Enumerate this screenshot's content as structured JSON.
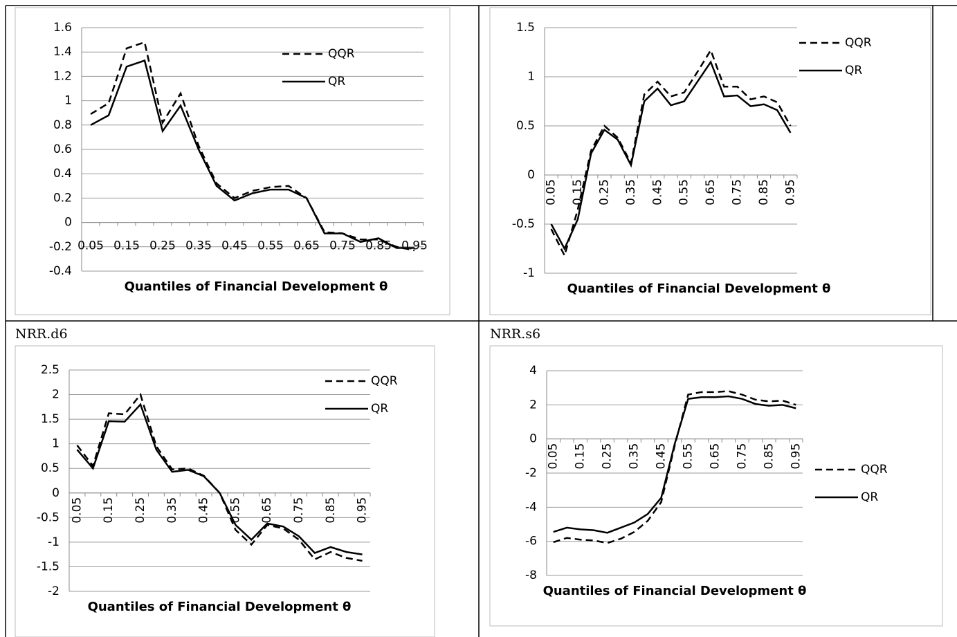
{
  "chart_data": [
    {
      "type": "line",
      "xlabel": "Quantiles of Financial Development θ",
      "categories": [
        "0.05",
        null,
        "0.15",
        null,
        "0.25",
        null,
        "0.35",
        null,
        "0.45",
        null,
        "0.55",
        null,
        "0.65",
        null,
        "0.75",
        null,
        "0.85",
        null,
        "0.95"
      ],
      "series": [
        {
          "name": "QQR",
          "color": "#000000",
          "values": [
            0.89,
            0.98,
            1.43,
            1.48,
            0.82,
            1.06,
            0.63,
            0.32,
            0.2,
            0.26,
            0.29,
            0.3,
            0.2,
            -0.08,
            -0.09,
            -0.14,
            -0.14,
            -0.2,
            -0.23
          ]
        },
        {
          "name": "QR",
          "color": "#000000",
          "values": [
            0.8,
            0.88,
            1.28,
            1.33,
            0.75,
            0.96,
            0.6,
            0.3,
            0.18,
            0.24,
            0.27,
            0.27,
            0.2,
            -0.09,
            -0.09,
            -0.16,
            -0.13,
            -0.21,
            -0.21
          ]
        }
      ],
      "ylim": [
        -0.4,
        1.6
      ],
      "yticks": [
        -0.4,
        -0.2,
        0,
        0.2,
        0.4,
        0.6,
        0.8,
        1,
        1.2,
        1.4,
        1.6
      ],
      "grid": true
    },
    {
      "type": "line",
      "xlabel": "Quantiles of Financial Development θ",
      "categories": [
        "0.05",
        null,
        "0.15",
        null,
        "0.25",
        null,
        "0.35",
        null,
        "0.45",
        null,
        "0.55",
        null,
        "0.65",
        null,
        "0.75",
        null,
        "0.85",
        null,
        "0.95"
      ],
      "series": [
        {
          "name": "QQR",
          "color": "#000000",
          "values": [
            -0.55,
            -0.82,
            -0.35,
            0.25,
            0.5,
            0.38,
            0.12,
            0.82,
            0.95,
            0.8,
            0.84,
            1.05,
            1.27,
            0.9,
            0.9,
            0.77,
            0.8,
            0.74,
            0.5
          ]
        },
        {
          "name": "QR",
          "color": "#000000",
          "values": [
            -0.5,
            -0.75,
            -0.45,
            0.22,
            0.46,
            0.36,
            0.1,
            0.75,
            0.88,
            0.71,
            0.75,
            0.95,
            1.15,
            0.8,
            0.81,
            0.7,
            0.72,
            0.66,
            0.43
          ]
        }
      ],
      "ylim": [
        -1,
        1.5
      ],
      "yticks": [
        -1,
        -0.5,
        0,
        0.5,
        1,
        1.5
      ],
      "grid": true
    },
    {
      "type": "line",
      "caption": "NRR.d6",
      "xlabel": "Quantiles of Financial Development θ",
      "categories": [
        "0.05",
        null,
        "0.15",
        null,
        "0.25",
        null,
        "0.35",
        null,
        "0.45",
        null,
        "0.55",
        null,
        "0.65",
        null,
        "0.75",
        null,
        "0.85",
        null,
        "0.95"
      ],
      "series": [
        {
          "name": "QQR",
          "color": "#000000",
          "values": [
            0.97,
            0.55,
            1.62,
            1.6,
            2.0,
            0.95,
            0.48,
            0.5,
            0.35,
            0,
            -0.75,
            -1.05,
            -0.65,
            -0.72,
            -0.95,
            -1.35,
            -1.2,
            -1.32,
            -1.38
          ]
        },
        {
          "name": "QR",
          "color": "#000000",
          "values": [
            0.88,
            0.5,
            1.46,
            1.45,
            1.8,
            0.88,
            0.43,
            0.47,
            0.34,
            0,
            -0.65,
            -0.95,
            -0.62,
            -0.68,
            -0.88,
            -1.22,
            -1.1,
            -1.2,
            -1.25
          ]
        }
      ],
      "ylim": [
        -2,
        2.5
      ],
      "yticks": [
        -2,
        -1.5,
        -1,
        -0.5,
        0,
        0.5,
        1,
        1.5,
        2,
        2.5
      ],
      "grid": true
    },
    {
      "type": "line",
      "caption": "NRR.s6",
      "xlabel": "Quantiles of Financial Development θ",
      "categories": [
        "0.05",
        null,
        "0.15",
        null,
        "0.25",
        null,
        "0.35",
        null,
        "0.45",
        null,
        "0.55",
        null,
        "0.65",
        null,
        "0.75",
        null,
        "0.85",
        null,
        "0.95"
      ],
      "series": [
        {
          "name": "QQR",
          "color": "#000000",
          "values": [
            -6.05,
            -5.8,
            -5.9,
            -5.95,
            -6.1,
            -5.85,
            -5.45,
            -4.8,
            -3.7,
            -0.4,
            2.6,
            2.75,
            2.75,
            2.8,
            2.6,
            2.3,
            2.2,
            2.25,
            2.0
          ]
        },
        {
          "name": "QR",
          "color": "#000000",
          "values": [
            -5.45,
            -5.2,
            -5.3,
            -5.35,
            -5.5,
            -5.2,
            -4.9,
            -4.4,
            -3.45,
            -0.3,
            2.35,
            2.45,
            2.45,
            2.5,
            2.35,
            2.05,
            1.95,
            2.0,
            1.8
          ]
        }
      ],
      "ylim": [
        -8,
        4
      ],
      "yticks": [
        -8,
        -6,
        -4,
        -2,
        0,
        2,
        4
      ],
      "grid": true
    }
  ]
}
